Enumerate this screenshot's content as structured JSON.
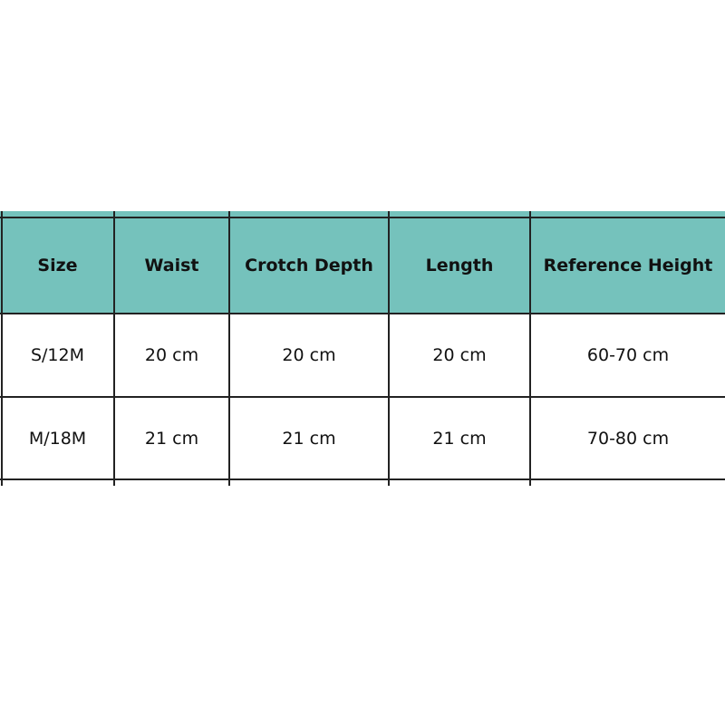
{
  "colors": {
    "header_bg": "#75c2bc",
    "border": "#222222"
  },
  "table": {
    "headers": [
      "Size",
      "Waist",
      "Crotch Depth",
      "Length",
      "Reference Height"
    ],
    "rows": [
      [
        "S/12M",
        "20 cm",
        "20 cm",
        "20 cm",
        "60-70 cm"
      ],
      [
        "M/18M",
        "21 cm",
        "21 cm",
        "21 cm",
        "70-80 cm"
      ]
    ]
  }
}
